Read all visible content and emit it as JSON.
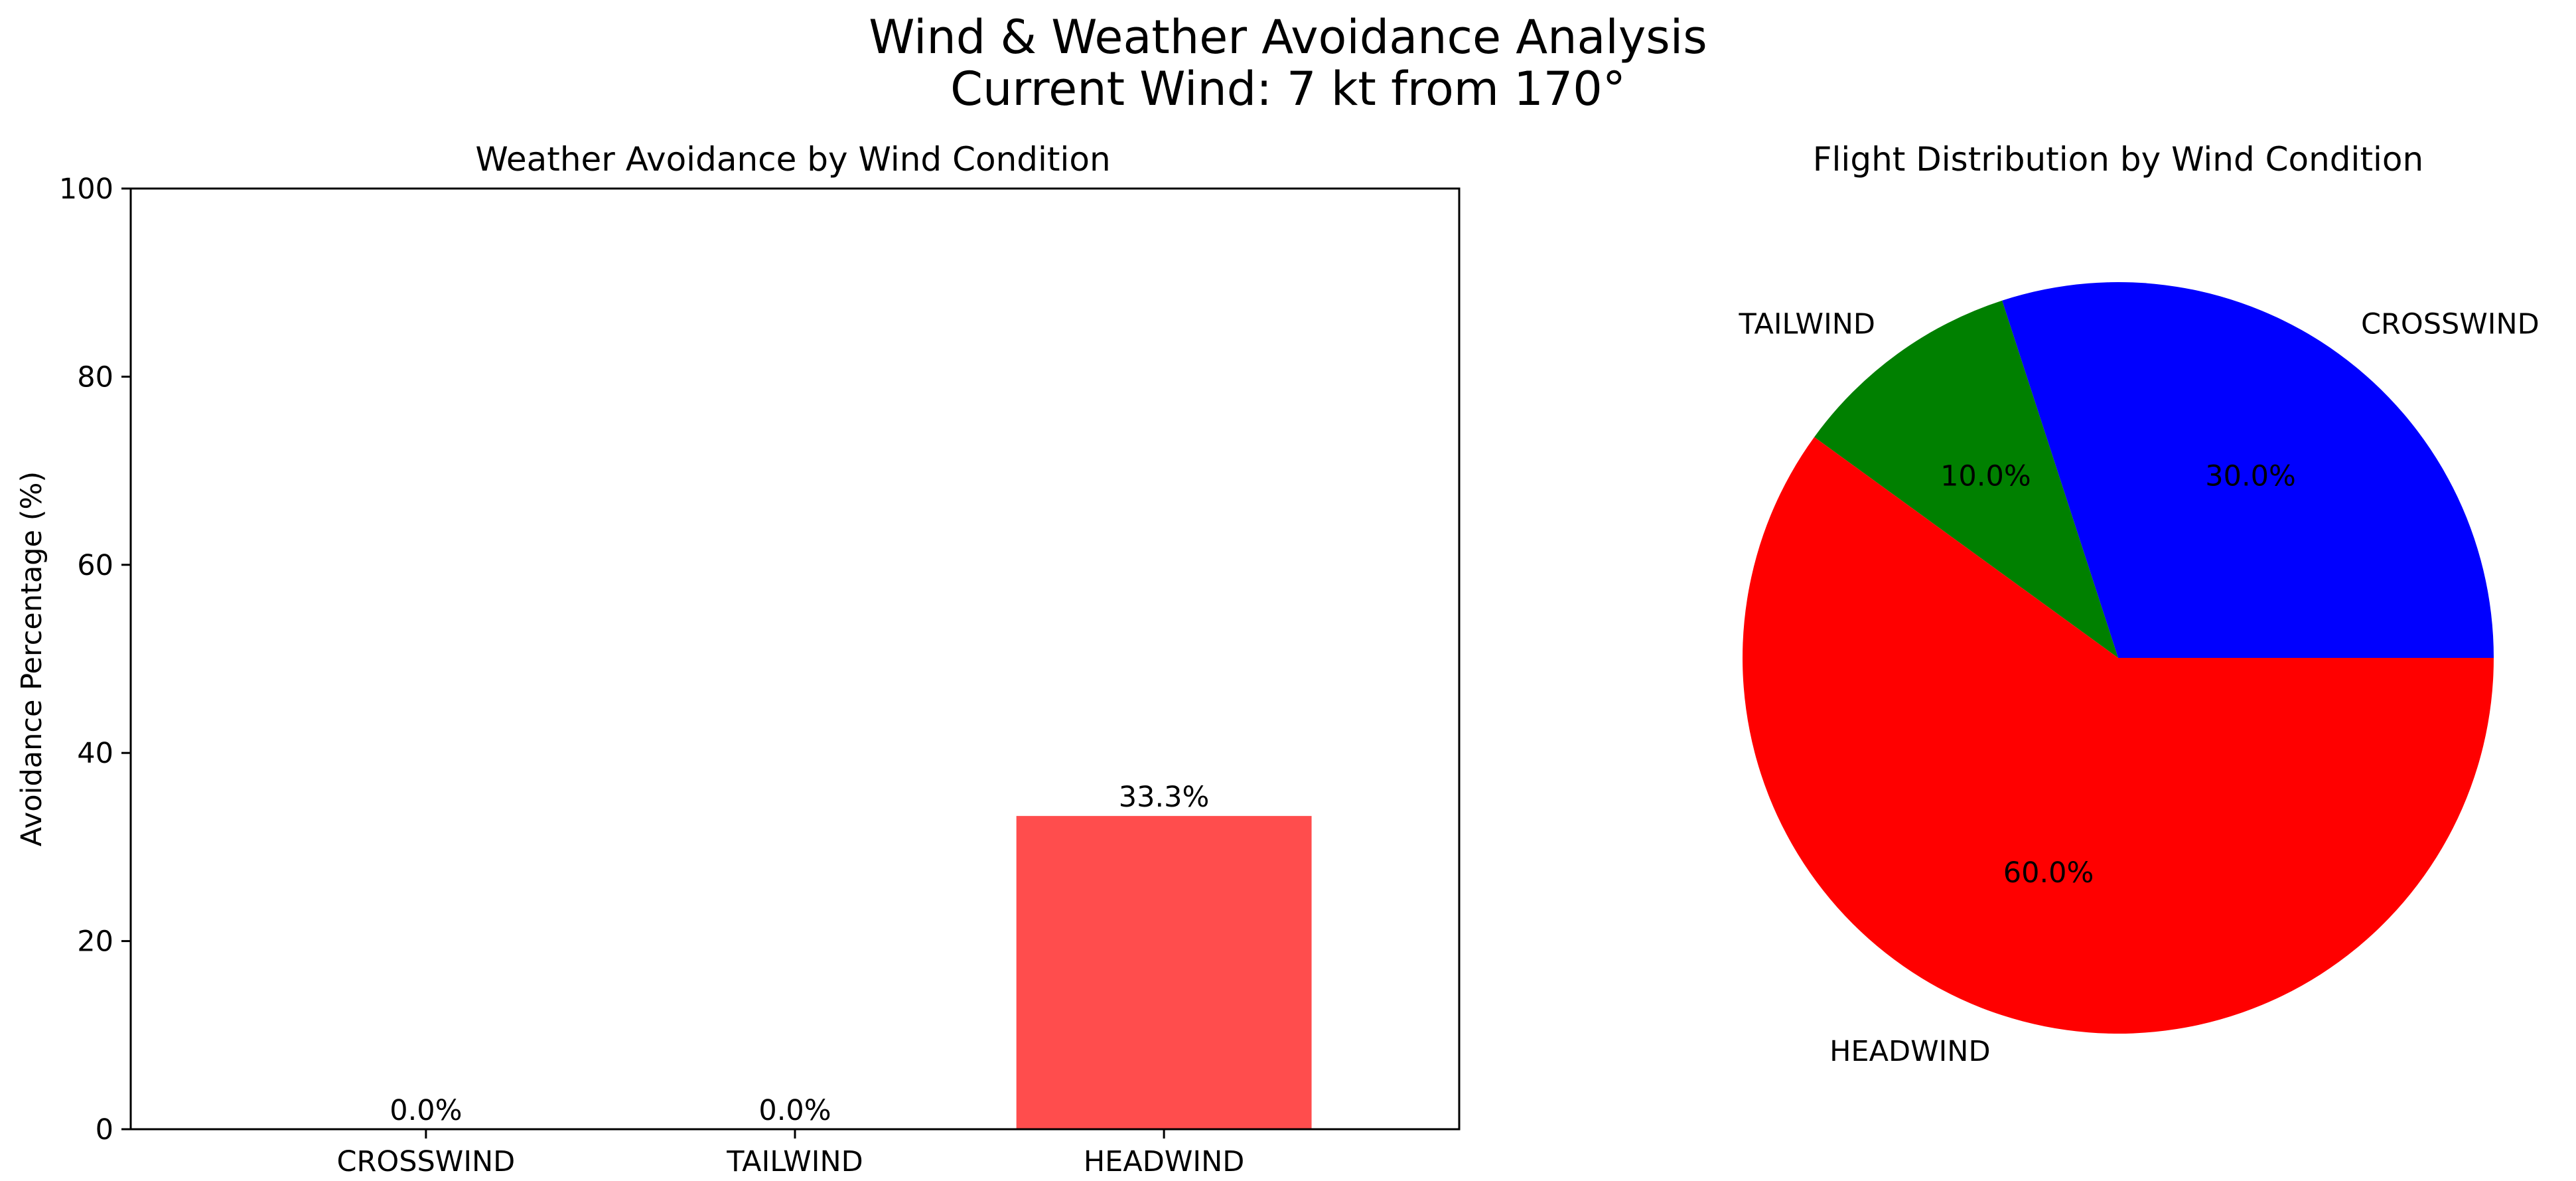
{
  "figure": {
    "title_line1": "Wind & Weather Avoidance Analysis",
    "title_line2": "Current Wind: 7 kt from 170°"
  },
  "chart_data": [
    {
      "type": "bar",
      "title": "Weather Avoidance by Wind Condition",
      "xlabel": "",
      "ylabel": "Avoidance Percentage (%)",
      "categories": [
        "CROSSWIND",
        "TAILWIND",
        "HEADWIND"
      ],
      "values": [
        0.0,
        0.0,
        33.3
      ],
      "value_labels": [
        "0.0%",
        "0.0%",
        "33.3%"
      ],
      "colors": [
        "#4d7cff",
        "#4dff4d",
        "#ff4d4d"
      ],
      "ylim": [
        0,
        100
      ],
      "yticks": [
        0,
        20,
        40,
        60,
        80,
        100
      ],
      "ytick_labels": [
        "0",
        "20",
        "40",
        "60",
        "80",
        "100"
      ],
      "grid": false,
      "legend": "none"
    },
    {
      "type": "pie",
      "title": "Flight Distribution by Wind Condition",
      "labels": [
        "CROSSWIND",
        "TAILWIND",
        "HEADWIND"
      ],
      "values": [
        30.0,
        10.0,
        60.0
      ],
      "value_labels": [
        "30.0%",
        "10.0%",
        "60.0%"
      ],
      "colors": [
        "#0000ff",
        "#008000",
        "#ff0000"
      ],
      "legend": "none"
    }
  ]
}
